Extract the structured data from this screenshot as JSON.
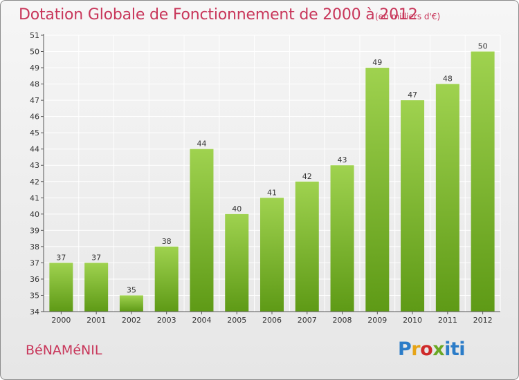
{
  "header": {
    "title": "Dotation Globale de Fonctionnement de 2000 à 2012",
    "unit": "(en milliers d'€)"
  },
  "footer": {
    "commune": "BéNAMéNIL",
    "logo_parts": [
      "P",
      "r",
      "o",
      "x",
      "iti"
    ]
  },
  "colors": {
    "title": "#c8365a",
    "bar_top": "#9fd24f",
    "bar_bottom": "#5e9a16",
    "grid": "#ffffff",
    "axis": "#555555"
  },
  "chart_data": {
    "type": "bar",
    "title": "Dotation Globale de Fonctionnement de 2000 à 2012",
    "xlabel": "",
    "ylabel": "",
    "categories": [
      "2000",
      "2001",
      "2002",
      "2003",
      "2004",
      "2005",
      "2006",
      "2007",
      "2008",
      "2009",
      "2010",
      "2011",
      "2012"
    ],
    "values": [
      37,
      37,
      35,
      38,
      44,
      40,
      41,
      42,
      43,
      49,
      47,
      48,
      50
    ],
    "ylim": [
      34,
      51
    ],
    "yticks": [
      34,
      35,
      36,
      37,
      38,
      39,
      40,
      41,
      42,
      43,
      44,
      45,
      46,
      47,
      48,
      49,
      50,
      51
    ],
    "grid": true,
    "data_labels": true
  }
}
